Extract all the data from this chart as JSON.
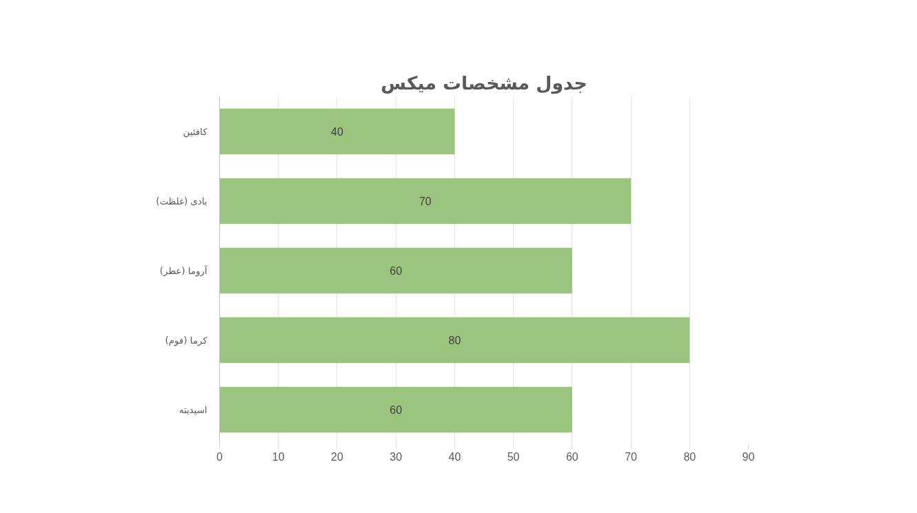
{
  "chart_data": {
    "type": "bar",
    "orientation": "horizontal",
    "title": "جدول مشخصات میکس",
    "categories": [
      "کافئین",
      "بادی (غلظت)",
      "آروما (عطر)",
      "کرما (فوم)",
      "اسیدیته"
    ],
    "values": [
      40,
      70,
      60,
      80,
      60
    ],
    "color": "#9bc47e",
    "xlim": [
      0,
      90
    ],
    "xticks": [
      0,
      10,
      20,
      30,
      40,
      50,
      60,
      70,
      80,
      90
    ],
    "grid": "x",
    "data_labels": true
  }
}
